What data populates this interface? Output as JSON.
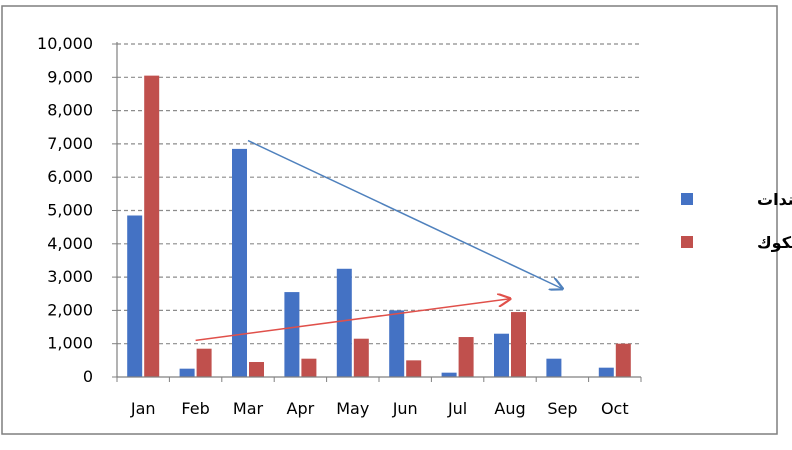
{
  "chart_data": {
    "type": "bar",
    "title": "",
    "xlabel": "",
    "ylabel": "",
    "categories": [
      "Jan",
      "Feb",
      "Mar",
      "Apr",
      "May",
      "Jun",
      "Jul",
      "Aug",
      "Sep",
      "Oct"
    ],
    "series": [
      {
        "name": "سندات",
        "color": "#4472C4",
        "values": [
          4850,
          250,
          6850,
          2550,
          3250,
          2000,
          130,
          1300,
          550,
          280
        ]
      },
      {
        "name": "صكوك",
        "color": "#C0504D",
        "values": [
          9050,
          850,
          450,
          550,
          1150,
          500,
          1200,
          1950,
          0,
          1000
        ]
      }
    ],
    "ylim": [
      0,
      10000
    ],
    "yticks": [
      "0",
      "1,000",
      "2,000",
      "3,000",
      "4,000",
      "5,000",
      "6,000",
      "7,000",
      "8,000",
      "9,000",
      "10,000"
    ],
    "grid": true,
    "legend": "right",
    "annotations": [
      {
        "type": "trend-arrow",
        "series": "سندات",
        "color": "#4F81BD",
        "from": {
          "x": "Mar",
          "y": 7100
        },
        "to": {
          "x": "Sep",
          "y": 2650
        }
      },
      {
        "type": "trend-arrow",
        "series": "صكوك",
        "color": "#E0504A",
        "from": {
          "x": "Feb",
          "y": 1100
        },
        "to": {
          "x": "Aug",
          "y": 2350
        }
      }
    ]
  }
}
